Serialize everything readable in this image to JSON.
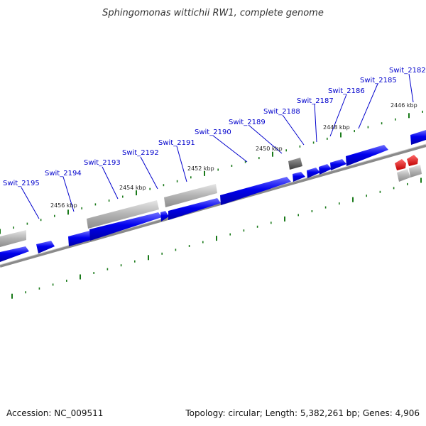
{
  "title": "Sphingomonas wittichii RW1, complete genome",
  "accession": "Accession: NC_009511",
  "summary": "Topology: circular; Length: 5,382,261 bp; Genes: 4,906",
  "colors": {
    "forward_gene": "#0000ee",
    "pseudo_gene": "#b0b0b0",
    "rna_gene": "#ee0000",
    "backbone": "#888888",
    "tick": "#1a7a1a",
    "label": "#0000cc"
  },
  "gene_labels": [
    "Swit_2182",
    "Swit_2185",
    "Swit_2186",
    "Swit_2187",
    "Swit_2188",
    "Swit_2189",
    "Swit_2190",
    "Swit_2191",
    "Swit_2192",
    "Swit_2193",
    "Swit_2194",
    "Swit_2195"
  ],
  "kbp_labels": [
    "2446 kbp",
    "2448 kbp",
    "2450 kbp",
    "2452 kbp",
    "2454 kbp",
    "2456 kbp"
  ]
}
